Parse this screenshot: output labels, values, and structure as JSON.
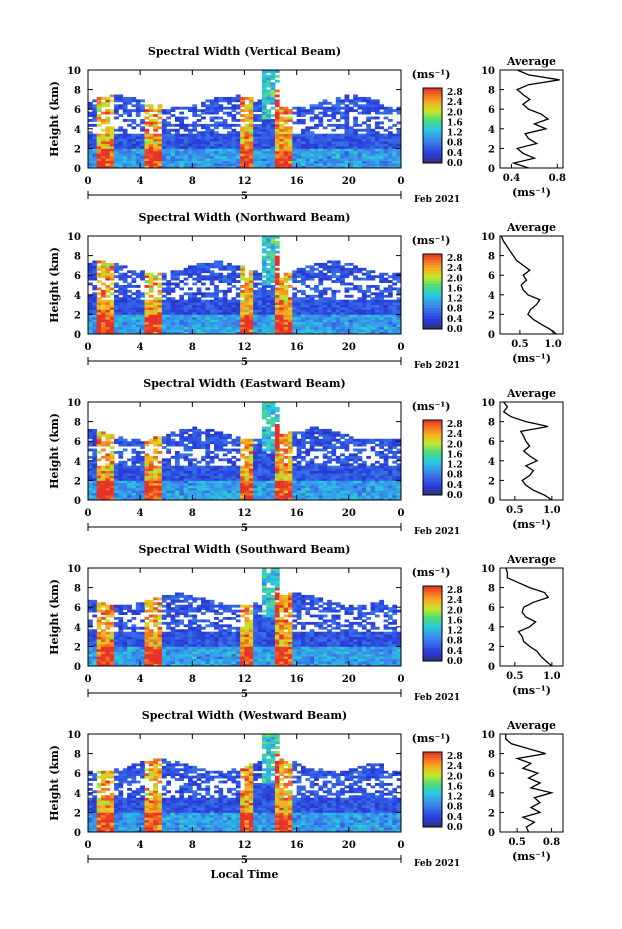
{
  "chart_data": [
    {
      "type": "heatmap",
      "title": "Spectral Width (Vertical Beam)",
      "ylabel": "Height (km)",
      "ylim": [
        0,
        10
      ],
      "yticks": [
        "0",
        "2",
        "4",
        "6",
        "8",
        "10"
      ],
      "xlim": [
        0,
        24
      ],
      "xticks": [
        "0",
        "4",
        "8",
        "12",
        "16",
        "20",
        "0"
      ],
      "date_marker": "5",
      "date_label": "Feb 2021",
      "colorbar": {
        "unit": "(ms⁻¹)",
        "ticks": [
          "2.8",
          "2.4",
          "2.0",
          "1.6",
          "1.2",
          "0.8",
          "0.4",
          "0.0"
        ]
      },
      "average": {
        "title": "Average",
        "xlabel": "(ms⁻¹)",
        "xticks": [
          "0.4",
          "0.8"
        ],
        "xlim": [
          0.3,
          0.85
        ],
        "ylim": [
          0,
          10
        ],
        "yticks": [
          "0",
          "2",
          "4",
          "6",
          "8",
          "10"
        ],
        "values": [
          0.55,
          0.42,
          0.6,
          0.5,
          0.45,
          0.62,
          0.55,
          0.52,
          0.7,
          0.6,
          0.72,
          0.66,
          0.55,
          0.5,
          0.56,
          0.5,
          0.45,
          0.55,
          0.82,
          0.55,
          0.45
        ]
      }
    },
    {
      "type": "heatmap",
      "title": "Spectral Width (Northward Beam)",
      "ylabel": "Height (km)",
      "ylim": [
        0,
        10
      ],
      "yticks": [
        "0",
        "2",
        "4",
        "6",
        "8",
        "10"
      ],
      "xlim": [
        0,
        24
      ],
      "xticks": [
        "0",
        "4",
        "8",
        "12",
        "16",
        "20",
        "0"
      ],
      "date_marker": "5",
      "date_label": "Feb 2021",
      "colorbar": {
        "unit": "(ms⁻¹)",
        "ticks": [
          "2.8",
          "2.4",
          "2.0",
          "1.6",
          "1.2",
          "0.8",
          "0.4",
          "0.0"
        ]
      },
      "average": {
        "title": "Average",
        "xlabel": "(ms⁻¹)",
        "xticks": [
          "0.5",
          "1.0"
        ],
        "xlim": [
          0.2,
          1.15
        ],
        "ylim": [
          0,
          10
        ],
        "yticks": [
          "0",
          "2",
          "4",
          "6",
          "8",
          "10"
        ],
        "values": [
          1.05,
          0.95,
          0.82,
          0.7,
          0.62,
          0.66,
          0.75,
          0.8,
          0.62,
          0.55,
          0.52,
          0.6,
          0.55,
          0.65,
          0.55,
          0.45,
          0.4,
          0.35,
          0.3,
          0.25,
          0.22
        ]
      }
    },
    {
      "type": "heatmap",
      "title": "Spectral Width (Eastward Beam)",
      "ylabel": "Height (km)",
      "ylim": [
        0,
        10
      ],
      "yticks": [
        "0",
        "2",
        "4",
        "6",
        "8",
        "10"
      ],
      "xlim": [
        0,
        24
      ],
      "xticks": [
        "0",
        "4",
        "8",
        "12",
        "16",
        "20",
        "0"
      ],
      "date_marker": "5",
      "date_label": "Feb 2021",
      "colorbar": {
        "unit": "(ms⁻¹)",
        "ticks": [
          "2.8",
          "2.4",
          "2.0",
          "1.6",
          "1.2",
          "0.8",
          "0.4",
          "0.0"
        ]
      },
      "average": {
        "title": "Average",
        "xlabel": "(ms⁻¹)",
        "xticks": [
          "0.5",
          "1.0"
        ],
        "xlim": [
          0.3,
          1.15
        ],
        "ylim": [
          0,
          10
        ],
        "yticks": [
          "0",
          "2",
          "4",
          "6",
          "8",
          "10"
        ],
        "values": [
          1.0,
          0.9,
          0.75,
          0.65,
          0.6,
          0.7,
          0.75,
          0.65,
          0.8,
          0.7,
          0.62,
          0.7,
          0.65,
          0.62,
          0.58,
          0.95,
          0.65,
          0.45,
          0.35,
          0.4,
          0.35
        ]
      }
    },
    {
      "type": "heatmap",
      "title": "Spectral Width (Southward Beam)",
      "ylabel": "Height (km)",
      "ylim": [
        0,
        10
      ],
      "yticks": [
        "0",
        "2",
        "4",
        "6",
        "8",
        "10"
      ],
      "xlim": [
        0,
        24
      ],
      "xticks": [
        "0",
        "4",
        "8",
        "12",
        "16",
        "20",
        "0"
      ],
      "date_marker": "5",
      "date_label": "Feb 2021",
      "colorbar": {
        "unit": "(ms⁻¹)",
        "ticks": [
          "2.8",
          "2.4",
          "2.0",
          "1.6",
          "1.2",
          "0.8",
          "0.4",
          "0.0"
        ]
      },
      "average": {
        "title": "Average",
        "xlabel": "(ms⁻¹)",
        "xticks": [
          "0.5",
          "1.0"
        ],
        "xlim": [
          0.3,
          1.15
        ],
        "ylim": [
          0,
          10
        ],
        "yticks": [
          "0",
          "2",
          "4",
          "6",
          "8",
          "10"
        ],
        "values": [
          1.0,
          0.92,
          0.85,
          0.8,
          0.7,
          0.62,
          0.6,
          0.55,
          0.7,
          0.78,
          0.65,
          0.6,
          0.62,
          0.75,
          0.95,
          0.9,
          0.7,
          0.55,
          0.4,
          0.4,
          0.38
        ]
      }
    },
    {
      "type": "heatmap",
      "title": "Spectral Width (Westward Beam)",
      "ylabel": "Height (km)",
      "ylim": [
        0,
        10
      ],
      "yticks": [
        "0",
        "2",
        "4",
        "6",
        "8",
        "10"
      ],
      "xlim": [
        0,
        24
      ],
      "xticks": [
        "0",
        "4",
        "8",
        "12",
        "16",
        "20",
        "0"
      ],
      "date_marker": "5",
      "date_label": "Feb 2021",
      "xlabel": "Local Time",
      "colorbar": {
        "unit": "(ms⁻¹)",
        "ticks": [
          "2.8",
          "2.4",
          "2.0",
          "1.6",
          "1.2",
          "0.8",
          "0.4",
          "0.0"
        ]
      },
      "average": {
        "title": "Average",
        "xlabel": "(ms⁻¹)",
        "xticks": [
          "0.5",
          "0.8"
        ],
        "xlim": [
          0.35,
          0.9
        ],
        "ylim": [
          0,
          10
        ],
        "yticks": [
          "0",
          "2",
          "4",
          "6",
          "8",
          "10"
        ],
        "values": [
          0.6,
          0.58,
          0.65,
          0.55,
          0.7,
          0.62,
          0.7,
          0.65,
          0.8,
          0.62,
          0.7,
          0.6,
          0.68,
          0.55,
          0.62,
          0.5,
          0.75,
          0.6,
          0.45,
          0.4,
          0.4
        ]
      }
    }
  ]
}
